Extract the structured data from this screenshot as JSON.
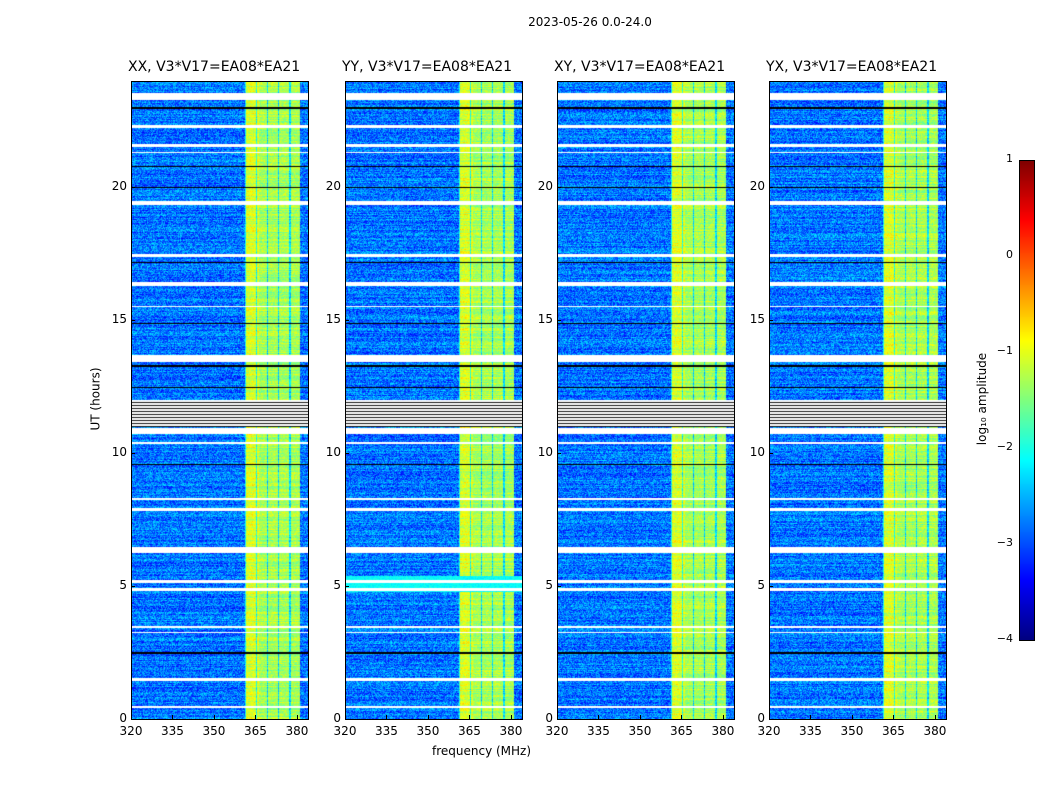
{
  "figure": {
    "suptitle": "2023-05-26 0.0-24.0",
    "xlabel": "frequency (MHz)",
    "ylabel": "UT (hours)",
    "colorbar_label": "log₁₀ amplitude"
  },
  "chart_data": {
    "type": "heatmap",
    "panels": [
      {
        "title": "XX, V3*V17=EA08*EA21"
      },
      {
        "title": "YY, V3*V17=EA08*EA21"
      },
      {
        "title": "XY, V3*V17=EA08*EA21"
      },
      {
        "title": "YX, V3*V17=EA08*EA21"
      }
    ],
    "xlim": [
      320,
      384
    ],
    "ylim": [
      0,
      24
    ],
    "xticks": [
      "320",
      "335",
      "350",
      "365",
      "380"
    ],
    "xtick_values": [
      320,
      335,
      350,
      365,
      380
    ],
    "yticks": [
      "0",
      "5",
      "10",
      "15",
      "20"
    ],
    "ytick_values": [
      0,
      5,
      10,
      15,
      20
    ],
    "colormap": "jet",
    "clim": [
      -4,
      1
    ],
    "colorbar_ticks": [
      "−4",
      "−3",
      "−2",
      "−1",
      "0",
      "1"
    ],
    "colorbar_tick_values": [
      -4,
      -3,
      -2,
      -1,
      0,
      1
    ],
    "signal_band_mhz": [
      361,
      381
    ],
    "background_level": -2.8,
    "band_level": -1.3,
    "flagged_rows_hours": [
      [
        23.3,
        23.55
      ],
      [
        22.25,
        22.35
      ],
      [
        21.55,
        21.65
      ],
      [
        21.3,
        21.35
      ],
      [
        19.35,
        19.5
      ],
      [
        17.4,
        17.5
      ],
      [
        16.3,
        16.45
      ],
      [
        15.5,
        15.55
      ],
      [
        13.45,
        13.7
      ],
      [
        10.75,
        10.95
      ],
      [
        10.35,
        10.45
      ],
      [
        8.25,
        8.35
      ],
      [
        7.85,
        7.95
      ],
      [
        6.25,
        6.5
      ],
      [
        5.15,
        5.25
      ],
      [
        4.85,
        4.95
      ],
      [
        3.45,
        3.5
      ],
      [
        3.25,
        3.3
      ],
      [
        1.45,
        1.55
      ],
      [
        0.45,
        0.5
      ]
    ],
    "striped_flag_hours": [
      11.0,
      12.0
    ],
    "dark_rows_hours": [
      0.0,
      2.5,
      9.6,
      12.5,
      13.3,
      14.9,
      17.2,
      20.0,
      20.8,
      23.0
    ]
  }
}
